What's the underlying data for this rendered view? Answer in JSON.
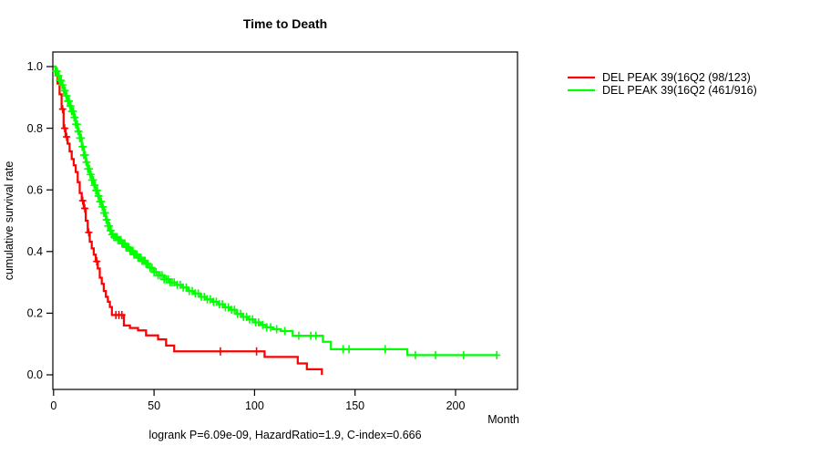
{
  "title": "Time to Death",
  "footer": "logrank P=6.09e-09, HazardRatio=1.9, C-index=0.666",
  "axes": {
    "y_label": "cumulative survival rate",
    "x_label": "Month",
    "y_tick_labels": [
      "0.0",
      "0.2",
      "0.4",
      "0.6",
      "0.8",
      "1.0"
    ],
    "x_tick_labels": [
      "0",
      "50",
      "100",
      "150",
      "200"
    ]
  },
  "legend": {
    "items": [
      {
        "label": "DEL PEAK 39(16Q2 (98/123)",
        "color": "#ff0000"
      },
      {
        "label": "DEL PEAK 39(16Q2 (461/916)",
        "color": "#00ff00"
      }
    ]
  },
  "chart_data": {
    "type": "line",
    "subtype": "kaplan-meier-step",
    "title": "Time to Death",
    "xlabel": "Month",
    "ylabel": "cumulative survival rate",
    "xlim": [
      0,
      215
    ],
    "ylim": [
      0.0,
      1.0
    ],
    "x_ticks": [
      0,
      50,
      100,
      150,
      200
    ],
    "y_ticks": [
      0.0,
      0.2,
      0.4,
      0.6,
      0.8,
      1.0
    ],
    "grid": false,
    "legend_position": "outside-right",
    "annotation": "logrank P=6.09e-09, HazardRatio=1.9, C-index=0.666",
    "series": [
      {
        "name": "DEL PEAK 39(16Q2 (98/123)",
        "color": "#ff0000",
        "steps": [
          [
            0,
            1.0
          ],
          [
            1,
            0.975
          ],
          [
            2,
            0.945
          ],
          [
            3,
            0.91
          ],
          [
            4,
            0.862
          ],
          [
            5,
            0.8
          ],
          [
            6,
            0.772
          ],
          [
            7,
            0.75
          ],
          [
            8,
            0.725
          ],
          [
            9,
            0.7
          ],
          [
            10,
            0.68
          ],
          [
            11,
            0.658
          ],
          [
            12,
            0.625
          ],
          [
            13,
            0.59
          ],
          [
            14,
            0.565
          ],
          [
            15,
            0.54
          ],
          [
            16,
            0.5
          ],
          [
            17,
            0.462
          ],
          [
            18,
            0.432
          ],
          [
            19,
            0.41
          ],
          [
            20,
            0.39
          ],
          [
            21,
            0.368
          ],
          [
            22,
            0.345
          ],
          [
            23,
            0.315
          ],
          [
            24,
            0.295
          ],
          [
            25,
            0.272
          ],
          [
            26,
            0.253
          ],
          [
            27,
            0.237
          ],
          [
            28,
            0.22
          ],
          [
            29,
            0.194
          ],
          [
            35,
            0.16
          ],
          [
            38,
            0.152
          ],
          [
            42,
            0.144
          ],
          [
            46,
            0.128
          ],
          [
            52,
            0.115
          ],
          [
            56,
            0.095
          ],
          [
            60,
            0.076
          ],
          [
            105,
            0.058
          ],
          [
            121.5,
            0.037
          ],
          [
            126,
            0.018
          ],
          [
            133.5,
            0.0
          ]
        ],
        "censor_months": [
          4.5,
          5.5,
          6.5,
          14.5,
          15.5,
          17.5,
          21.5,
          31,
          32.5,
          34,
          83,
          101
        ]
      },
      {
        "name": "DEL PEAK 39(16Q2 (461/916)",
        "color": "#00ff00",
        "steps": [
          [
            0,
            1.0
          ],
          [
            1,
            0.985
          ],
          [
            2,
            0.97
          ],
          [
            3,
            0.955
          ],
          [
            4,
            0.94
          ],
          [
            5,
            0.922
          ],
          [
            6,
            0.905
          ],
          [
            7,
            0.888
          ],
          [
            8,
            0.872
          ],
          [
            9,
            0.855
          ],
          [
            10,
            0.835
          ],
          [
            11,
            0.813
          ],
          [
            12,
            0.79
          ],
          [
            13,
            0.768
          ],
          [
            14,
            0.74
          ],
          [
            15,
            0.713
          ],
          [
            16,
            0.69
          ],
          [
            17,
            0.668
          ],
          [
            18,
            0.65
          ],
          [
            19,
            0.632
          ],
          [
            20,
            0.615
          ],
          [
            21,
            0.598
          ],
          [
            22,
            0.58
          ],
          [
            23,
            0.562
          ],
          [
            24,
            0.545
          ],
          [
            25,
            0.525
          ],
          [
            26,
            0.503
          ],
          [
            27,
            0.483
          ],
          [
            28,
            0.468
          ],
          [
            29,
            0.455
          ],
          [
            30,
            0.447
          ],
          [
            32,
            0.437
          ],
          [
            34,
            0.426
          ],
          [
            36,
            0.414
          ],
          [
            38,
            0.402
          ],
          [
            40,
            0.39
          ],
          [
            42,
            0.38
          ],
          [
            44,
            0.37
          ],
          [
            46,
            0.36
          ],
          [
            48,
            0.347
          ],
          [
            50,
            0.333
          ],
          [
            52,
            0.323
          ],
          [
            55,
            0.31
          ],
          [
            58,
            0.3
          ],
          [
            61,
            0.292
          ],
          [
            64,
            0.283
          ],
          [
            67,
            0.272
          ],
          [
            70,
            0.264
          ],
          [
            73,
            0.253
          ],
          [
            76,
            0.245
          ],
          [
            79,
            0.237
          ],
          [
            82,
            0.229
          ],
          [
            85,
            0.219
          ],
          [
            88,
            0.211
          ],
          [
            91,
            0.198
          ],
          [
            94,
            0.188
          ],
          [
            97,
            0.18
          ],
          [
            100,
            0.17
          ],
          [
            103,
            0.162
          ],
          [
            106,
            0.154
          ],
          [
            109,
            0.148
          ],
          [
            113,
            0.142
          ],
          [
            119,
            0.127
          ],
          [
            134,
            0.107
          ],
          [
            138,
            0.083
          ],
          [
            176,
            0.064
          ],
          [
            221,
            0.064
          ]
        ],
        "censor_months": [
          1,
          1.4,
          1.8,
          2.2,
          2.6,
          3,
          3.4,
          3.8,
          4.2,
          4.6,
          5,
          5.4,
          5.8,
          6.2,
          6.6,
          7,
          7.4,
          7.8,
          8.2,
          8.6,
          9,
          9.4,
          9.8,
          10.2,
          10.6,
          11,
          11.4,
          11.8,
          12.2,
          12.6,
          13,
          13.4,
          13.8,
          14.2,
          14.6,
          15,
          15.4,
          15.8,
          16.2,
          16.6,
          17,
          17.4,
          17.8,
          18.2,
          18.6,
          19,
          19.4,
          19.8,
          20.2,
          20.6,
          21,
          21.4,
          21.8,
          22.2,
          22.6,
          23,
          23.4,
          23.8,
          24.2,
          24.6,
          25,
          25.4,
          25.8,
          26.2,
          26.6,
          27,
          27.4,
          27.8,
          28.2,
          28.6,
          29,
          29.5,
          30,
          30.5,
          31,
          31.5,
          32,
          32.5,
          33,
          33.5,
          34,
          34.5,
          35,
          35.5,
          36,
          36.5,
          37,
          37.5,
          38,
          38.5,
          39,
          39.5,
          40,
          40.5,
          41,
          41.5,
          42,
          42.5,
          43,
          43.5,
          44,
          44.5,
          45,
          45.5,
          46,
          46.5,
          47,
          48,
          49,
          50,
          51,
          52,
          53,
          54,
          55,
          56,
          57,
          58,
          59,
          60,
          61.5,
          63,
          64.5,
          66,
          67.5,
          69,
          70.5,
          72,
          73.5,
          75,
          76.5,
          78,
          79.5,
          81,
          82.5,
          84,
          85.5,
          87,
          88.5,
          90,
          91.5,
          93,
          94.5,
          96,
          97.5,
          99,
          100.5,
          102,
          104,
          106,
          108,
          111,
          115,
          122,
          128,
          130.5,
          144,
          147,
          165,
          180,
          190,
          204,
          220.5
        ]
      }
    ]
  }
}
